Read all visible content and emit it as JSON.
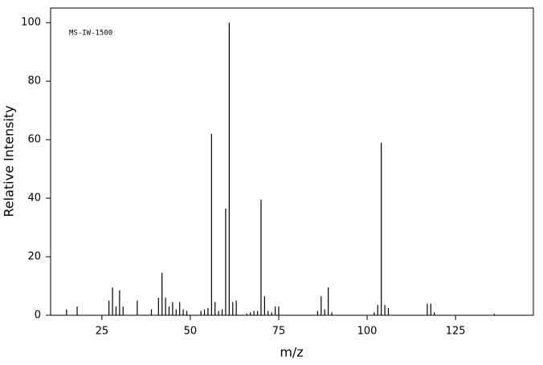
{
  "chart_data": {
    "type": "stem",
    "annotation": "MS-IW-1500",
    "xlabel": "m/z",
    "ylabel": "Relative Intensity",
    "color": "#000000",
    "xlim": [
      10.5,
      147
    ],
    "ylim": [
      0,
      105
    ],
    "xticks": [
      25,
      50,
      75,
      100,
      125
    ],
    "yticks": [
      0,
      20,
      40,
      60,
      80,
      100
    ],
    "x": [
      15,
      18,
      27,
      28,
      29,
      30,
      31,
      35,
      39,
      41,
      42,
      43,
      44,
      45,
      46,
      47,
      48,
      49,
      53,
      54,
      55,
      56,
      57,
      58,
      59,
      60,
      61,
      62,
      63,
      66,
      67,
      68,
      69,
      70,
      71,
      72,
      73,
      74,
      75,
      86,
      87,
      88,
      89,
      90,
      102,
      103,
      104,
      105,
      106,
      117,
      118,
      119,
      136
    ],
    "values": [
      2,
      3,
      5,
      9.5,
      3,
      8.5,
      3,
      5,
      2,
      6,
      14.5,
      6,
      3,
      4.5,
      2,
      4.5,
      2,
      1.5,
      1.5,
      2,
      2.5,
      62,
      4.5,
      1.5,
      2,
      36.5,
      100,
      4.5,
      5,
      0.5,
      1,
      1.5,
      1.5,
      39.5,
      6.5,
      1.5,
      1,
      3,
      3,
      1.5,
      6.5,
      2,
      9.5,
      1,
      1,
      3.5,
      59,
      3.5,
      2.5,
      4,
      4,
      1,
      0.5
    ]
  }
}
